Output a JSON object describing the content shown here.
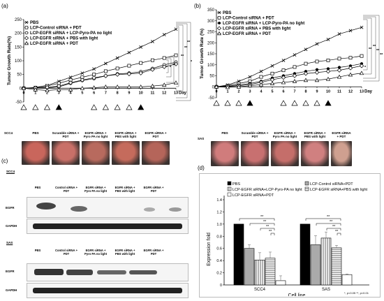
{
  "panels": {
    "a": "(a)",
    "b": "(b)",
    "c": "(c)",
    "d": "(d)"
  },
  "chart_data": [
    {
      "type": "line",
      "panel": "a",
      "ylabel": "Tumor Growth Rate(%)",
      "xlabel": "Day",
      "ylim": [
        -50,
        250
      ],
      "xlim": [
        0,
        13
      ],
      "yticks": [
        -50,
        0,
        50,
        100,
        150,
        200,
        250
      ],
      "xticks": [
        0,
        1,
        2,
        3,
        4,
        5,
        6,
        7,
        8,
        9,
        10,
        11,
        12,
        13
      ],
      "legend_position": "top-left",
      "series": [
        {
          "name": "PBS",
          "marker": "x",
          "x": [
            0,
            1,
            2,
            3,
            4,
            5,
            6,
            7,
            8,
            9,
            10,
            11,
            12,
            13
          ],
          "y": [
            0,
            3,
            10,
            25,
            40,
            55,
            70,
            90,
            110,
            130,
            150,
            170,
            195,
            215
          ]
        },
        {
          "name": "LCP-Control siRNA + PDT",
          "marker": "square",
          "x": [
            0,
            1,
            2,
            3,
            4,
            5,
            6,
            7,
            8,
            9,
            10,
            11,
            12,
            13
          ],
          "y": [
            0,
            2,
            8,
            18,
            30,
            40,
            50,
            62,
            72,
            82,
            92,
            102,
            110,
            120
          ]
        },
        {
          "name": "LCP-EGFR siRNA + LCP-Pyro-PA no light",
          "marker": "circle",
          "x": [
            0,
            1,
            2,
            3,
            4,
            5,
            6,
            7,
            8,
            9,
            10,
            11,
            12,
            13
          ],
          "y": [
            0,
            1,
            2,
            5,
            18,
            28,
            35,
            45,
            52,
            55,
            60,
            72,
            85,
            95
          ]
        },
        {
          "name": "LCP-EGFR siRNA + PBS with light",
          "marker": "diamond",
          "x": [
            0,
            1,
            2,
            3,
            4,
            5,
            6,
            7,
            8,
            9,
            10,
            11,
            12,
            13
          ],
          "y": [
            0,
            1,
            3,
            8,
            20,
            30,
            38,
            45,
            50,
            52,
            55,
            68,
            78,
            88
          ]
        },
        {
          "name": "LCP-EGFR siRNA + PDT",
          "marker": "triangle",
          "x": [
            0,
            1,
            2,
            3,
            4,
            5,
            6,
            7,
            8,
            9,
            10,
            11,
            12,
            13
          ],
          "y": [
            0,
            -5,
            -8,
            -5,
            -5,
            0,
            2,
            5,
            5,
            5,
            5,
            8,
            12,
            20
          ]
        }
      ],
      "significance": [
        "*",
        "**",
        "**",
        "**",
        "**",
        "*",
        "**"
      ],
      "triangles": [
        "open",
        "open",
        "open",
        "filled",
        "open",
        "open",
        "open",
        "open",
        "filled"
      ],
      "triangle_days": [
        0,
        1,
        2,
        3,
        6,
        7,
        8,
        9,
        10
      ]
    },
    {
      "type": "line",
      "panel": "b",
      "ylabel": "Tumor Growth Rate (%)",
      "xlabel": "Day",
      "ylim": [
        -50,
        350
      ],
      "xlim": [
        0,
        13
      ],
      "yticks": [
        -50,
        0,
        50,
        100,
        150,
        200,
        250,
        300,
        350
      ],
      "xticks": [
        0,
        1,
        2,
        3,
        4,
        5,
        6,
        7,
        8,
        9,
        10,
        11,
        12,
        13
      ],
      "legend_position": "top-left",
      "series": [
        {
          "name": "PBS",
          "marker": "x",
          "x": [
            0,
            1,
            2,
            3,
            4,
            5,
            6,
            7,
            8,
            9,
            10,
            11,
            12,
            13
          ],
          "y": [
            0,
            8,
            25,
            45,
            70,
            95,
            120,
            145,
            170,
            195,
            215,
            240,
            255,
            270
          ]
        },
        {
          "name": "LCP-Control siRNA + PDT",
          "marker": "square",
          "x": [
            0,
            1,
            2,
            3,
            4,
            5,
            6,
            7,
            8,
            9,
            10,
            11,
            12,
            13
          ],
          "y": [
            0,
            5,
            15,
            25,
            45,
            60,
            75,
            90,
            105,
            115,
            120,
            128,
            132,
            140
          ]
        },
        {
          "name": "LCP-EGFR siRNA + LCP-Pyro-PA no light",
          "marker": "filled-circle",
          "x": [
            0,
            1,
            2,
            3,
            4,
            5,
            6,
            7,
            8,
            9,
            10,
            11,
            12,
            13
          ],
          "y": [
            0,
            3,
            8,
            15,
            25,
            40,
            50,
            60,
            70,
            78,
            82,
            88,
            95,
            105
          ]
        },
        {
          "name": "LCP-EGFR siRNA + PBS with light",
          "marker": "diamond",
          "x": [
            0,
            1,
            2,
            3,
            4,
            5,
            6,
            7,
            8,
            9,
            10,
            11,
            12,
            13
          ],
          "y": [
            0,
            2,
            5,
            10,
            20,
            32,
            42,
            50,
            60,
            65,
            70,
            75,
            85,
            95
          ]
        },
        {
          "name": "LCP-EGFR siRNA + PDT",
          "marker": "triangle",
          "x": [
            0,
            1,
            2,
            3,
            4,
            5,
            6,
            7,
            8,
            9,
            10,
            11,
            12,
            13
          ],
          "y": [
            0,
            -2,
            0,
            5,
            10,
            15,
            20,
            25,
            30,
            30,
            35,
            45,
            55,
            62
          ]
        }
      ],
      "significance": [
        "*",
        "**",
        "**",
        "**",
        "**"
      ],
      "triangles": [
        "open",
        "open",
        "open",
        "filled",
        "open",
        "open",
        "open",
        "open",
        "filled"
      ],
      "triangle_days": [
        0,
        1,
        2,
        3,
        6,
        7,
        8,
        9,
        10
      ]
    },
    {
      "type": "bar",
      "panel": "d",
      "ylabel": "Expression fold",
      "xlabel": "Cell line",
      "ylim": [
        0,
        1.4
      ],
      "yticks": [
        0,
        0.2,
        0.4,
        0.6,
        0.8,
        1.0,
        1.2,
        1.4
      ],
      "categories": [
        "SCC4",
        "SAS"
      ],
      "legend_position": "top",
      "series": [
        {
          "name": "PBS",
          "fill": "#000000",
          "values": [
            1.0,
            1.0
          ],
          "errors": [
            0,
            0
          ]
        },
        {
          "name": "LCP-Control siRNA+PDT",
          "fill": "#aaaaaa",
          "values": [
            0.6,
            0.66
          ],
          "errors": [
            0.06,
            0.15
          ]
        },
        {
          "name": "LCP-EGFR siRNA+LCP-Pyro-PA no light",
          "fill": "stripe-v",
          "values": [
            0.41,
            0.77
          ],
          "errors": [
            0.12,
            0.1
          ]
        },
        {
          "name": "LCP-EGFR siRNA+PBS with light",
          "fill": "stripe-h",
          "values": [
            0.44,
            0.61
          ],
          "errors": [
            0.1,
            0.04
          ]
        },
        {
          "name": "LCP-EGFR siRNA+PDT",
          "fill": "#ffffff",
          "values": [
            0.07,
            0.17
          ],
          "errors": [
            0.08,
            0.01
          ]
        }
      ],
      "significance": [
        "**",
        "**",
        "**",
        "**"
      ],
      "footnote": "*, p<0.05     **, p<0.01"
    }
  ],
  "photos_a": {
    "cell_line": "SCC4",
    "captions": [
      "PBS",
      "Scramble siRNA + PDT",
      "EGFR siRNA + Pyro PA no light",
      "EGFR siRNA + PBS with light",
      "EGFR siRNA + PDT"
    ],
    "colors": [
      "#c9665c",
      "#c97068",
      "#b86a5e",
      "#c56b5c",
      "#b5655a"
    ]
  },
  "photos_b": {
    "cell_line": "SAS",
    "captions": [
      "PBS",
      "Scramble siRNA + PDT",
      "EGFR siRNA + Pyro PA no light",
      "EGFR siRNA + PBS with light",
      "EGFR siRNA + PDT"
    ],
    "colors": [
      "#d07c7c",
      "#c87070",
      "#c56e6a",
      "#d08080",
      "#cfa090"
    ]
  },
  "blots": {
    "scc4_label": "SCC4",
    "sas_label": "SAS",
    "captions": [
      "PBS",
      "Control siRNA + PDT",
      "EGFR siRNA + Pyro PA no light",
      "EGFR siRNA + PBS with light",
      "EGFR siRNA + PDT"
    ],
    "egfr": "EGFR",
    "gapdh": "GAPDH"
  }
}
